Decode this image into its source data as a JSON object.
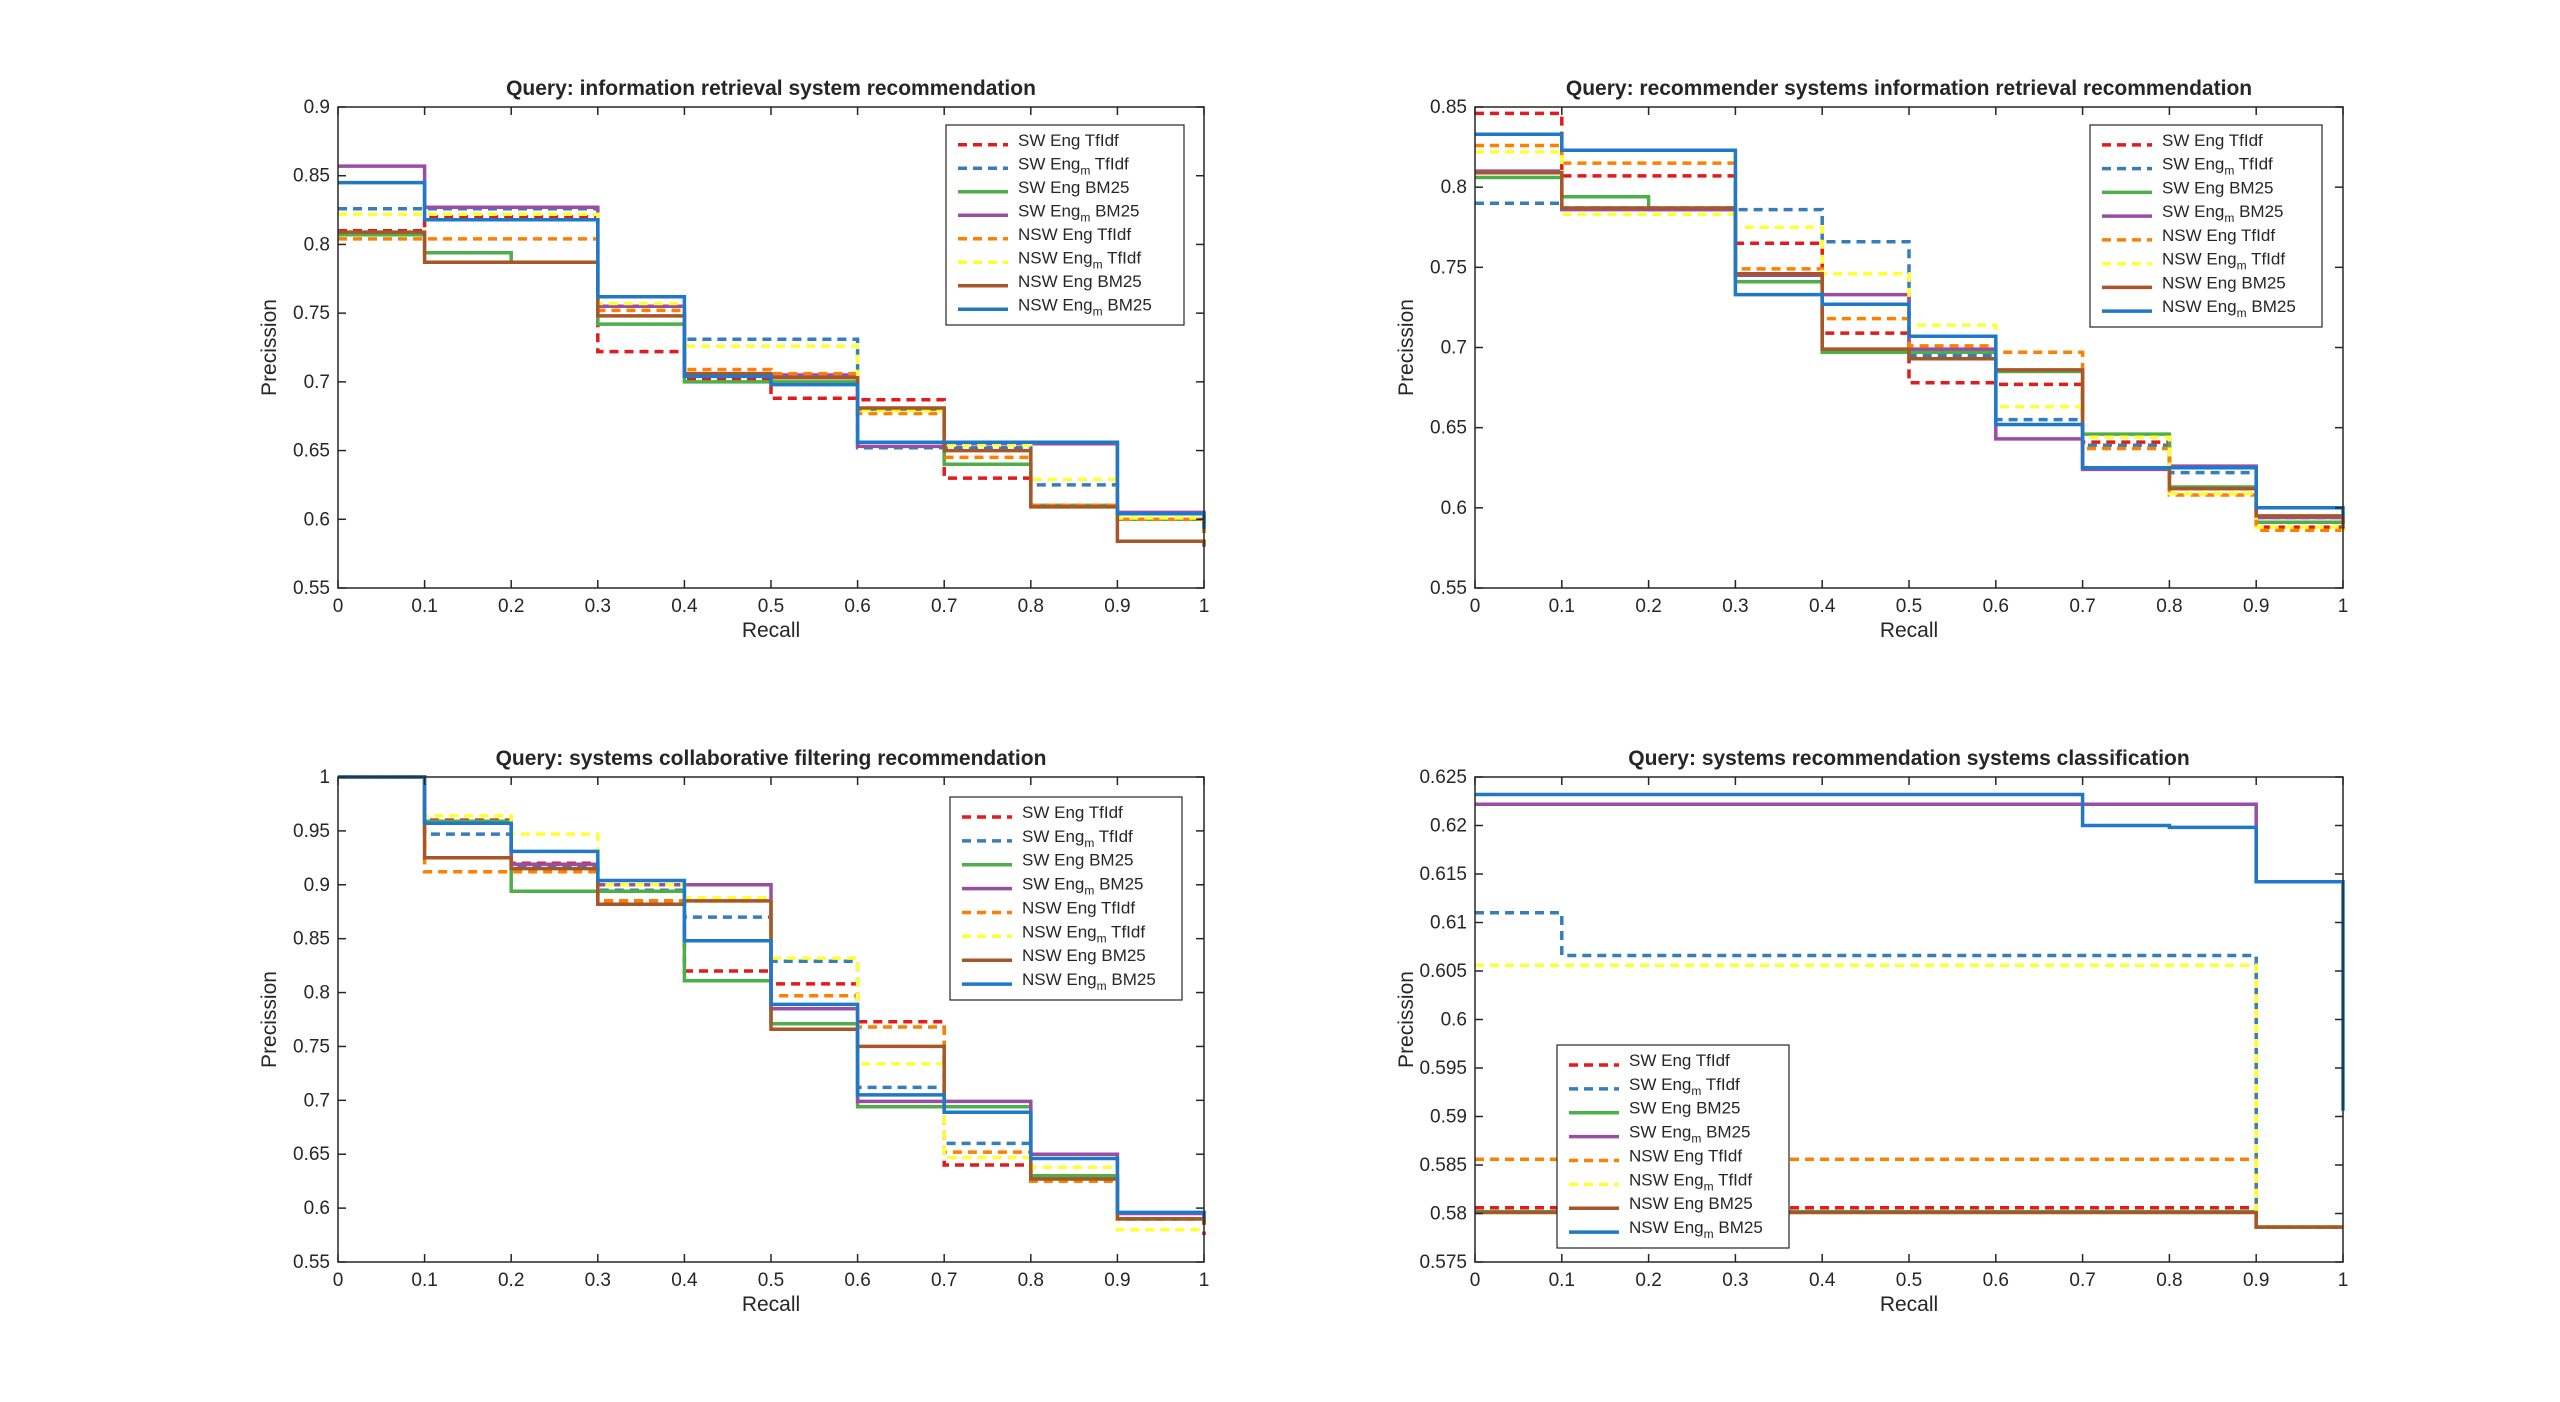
{
  "chart_data": [
    {
      "type": "line",
      "title": "Query: information retrieval system recommendation",
      "xlabel": "Recall",
      "ylabel": "Precission",
      "xlim": [
        0,
        1
      ],
      "ylim": [
        0.55,
        0.9
      ],
      "yticks": [
        "0.55",
        "0.6",
        "0.65",
        "0.7",
        "0.75",
        "0.8",
        "0.85",
        "0.9"
      ],
      "legend_position": "top-right",
      "x": [
        0,
        0.1,
        0.2,
        0.3,
        0.4,
        0.5,
        0.6,
        0.7,
        0.8,
        0.9,
        1.0
      ],
      "series": [
        {
          "name": "SW Eng TfIdf",
          "sub": "",
          "tail": "",
          "values": [
            0.81,
            0.82,
            0.82,
            0.722,
            0.702,
            0.688,
            0.687,
            0.63,
            0.61,
            0.6,
            0.595
          ]
        },
        {
          "name": "SW Eng",
          "sub": "m",
          "tail": "TfIdf",
          "values": [
            0.826,
            0.826,
            0.826,
            0.755,
            0.731,
            0.731,
            0.652,
            0.652,
            0.625,
            0.6,
            0.595
          ]
        },
        {
          "name": "SW Eng BM25",
          "sub": "",
          "tail": "",
          "values": [
            0.807,
            0.794,
            0.787,
            0.742,
            0.7,
            0.7,
            0.68,
            0.64,
            0.61,
            0.6,
            0.59
          ]
        },
        {
          "name": "SW Eng",
          "sub": "m",
          "tail": "BM25",
          "values": [
            0.857,
            0.827,
            0.827,
            0.755,
            0.705,
            0.705,
            0.653,
            0.655,
            0.655,
            0.605,
            0.595
          ]
        },
        {
          "name": "NSW Eng TfIdf",
          "sub": "",
          "tail": "",
          "values": [
            0.804,
            0.804,
            0.804,
            0.752,
            0.709,
            0.706,
            0.677,
            0.645,
            0.61,
            0.6,
            0.59
          ]
        },
        {
          "name": "NSW Eng",
          "sub": "m",
          "tail": "TfIdf",
          "values": [
            0.822,
            0.822,
            0.822,
            0.757,
            0.726,
            0.726,
            0.679,
            0.654,
            0.629,
            0.601,
            0.595
          ]
        },
        {
          "name": "NSW Eng BM25",
          "sub": "",
          "tail": "",
          "values": [
            0.809,
            0.787,
            0.787,
            0.748,
            0.706,
            0.703,
            0.681,
            0.65,
            0.609,
            0.584,
            0.58
          ]
        },
        {
          "name": "NSW Eng",
          "sub": "m",
          "tail": "BM25",
          "values": [
            0.845,
            0.818,
            0.818,
            0.762,
            0.704,
            0.698,
            0.656,
            0.656,
            0.656,
            0.604,
            0.593
          ]
        }
      ]
    },
    {
      "type": "line",
      "title": "Query: recommender systems information retrieval recommendation",
      "xlabel": "Recall",
      "ylabel": "Precission",
      "xlim": [
        0,
        1
      ],
      "ylim": [
        0.55,
        0.85
      ],
      "yticks": [
        "0.55",
        "0.6",
        "0.65",
        "0.7",
        "0.75",
        "0.8",
        "0.85"
      ],
      "legend_position": "top-right",
      "x": [
        0,
        0.1,
        0.2,
        0.3,
        0.4,
        0.5,
        0.6,
        0.7,
        0.8,
        0.9,
        1.0
      ],
      "series": [
        {
          "name": "SW Eng TfIdf",
          "sub": "",
          "tail": "",
          "values": [
            0.846,
            0.807,
            0.807,
            0.765,
            0.709,
            0.678,
            0.677,
            0.641,
            0.612,
            0.588,
            0.585
          ]
        },
        {
          "name": "SW Eng",
          "sub": "m",
          "tail": "TfIdf",
          "values": [
            0.79,
            0.787,
            0.787,
            0.786,
            0.766,
            0.695,
            0.655,
            0.639,
            0.622,
            0.594,
            0.59
          ]
        },
        {
          "name": "SW Eng BM25",
          "sub": "",
          "tail": "",
          "values": [
            0.806,
            0.794,
            0.786,
            0.741,
            0.697,
            0.697,
            0.685,
            0.646,
            0.613,
            0.591,
            0.588
          ]
        },
        {
          "name": "SW Eng",
          "sub": "m",
          "tail": "BM25",
          "values": [
            0.81,
            0.786,
            0.786,
            0.745,
            0.733,
            0.699,
            0.643,
            0.624,
            0.626,
            0.594,
            0.59
          ]
        },
        {
          "name": "NSW Eng TfIdf",
          "sub": "",
          "tail": "",
          "values": [
            0.826,
            0.815,
            0.815,
            0.749,
            0.718,
            0.701,
            0.697,
            0.637,
            0.608,
            0.586,
            0.582
          ]
        },
        {
          "name": "NSW Eng",
          "sub": "m",
          "tail": "TfIdf",
          "values": [
            0.822,
            0.783,
            0.783,
            0.775,
            0.746,
            0.714,
            0.663,
            0.644,
            0.609,
            0.588,
            0.585
          ]
        },
        {
          "name": "NSW Eng BM25",
          "sub": "",
          "tail": "",
          "values": [
            0.809,
            0.787,
            0.787,
            0.746,
            0.699,
            0.693,
            0.686,
            0.625,
            0.612,
            0.595,
            0.59
          ]
        },
        {
          "name": "NSW Eng",
          "sub": "m",
          "tail": "BM25",
          "values": [
            0.833,
            0.823,
            0.823,
            0.733,
            0.727,
            0.707,
            0.652,
            0.625,
            0.625,
            0.6,
            0.595
          ]
        }
      ]
    },
    {
      "type": "line",
      "title": "Query: systems collaborative filtering recommendation",
      "xlabel": "Recall",
      "ylabel": "Precission",
      "xlim": [
        0,
        1
      ],
      "ylim": [
        0.55,
        1
      ],
      "yticks": [
        "0.55",
        "0.6",
        "0.65",
        "0.7",
        "0.75",
        "0.8",
        "0.85",
        "0.9",
        "0.95",
        "1"
      ],
      "legend_position": "top-right",
      "x": [
        0,
        0.1,
        0.2,
        0.3,
        0.4,
        0.5,
        0.6,
        0.7,
        0.8,
        0.9,
        1.0
      ],
      "series": [
        {
          "name": "SW Eng TfIdf",
          "sub": "",
          "tail": "",
          "values": [
            1.0,
            0.96,
            0.92,
            0.885,
            0.82,
            0.808,
            0.773,
            0.64,
            0.63,
            0.59,
            0.575
          ]
        },
        {
          "name": "SW Eng",
          "sub": "m",
          "tail": "TfIdf",
          "values": [
            1.0,
            0.947,
            0.916,
            0.895,
            0.87,
            0.829,
            0.712,
            0.66,
            0.63,
            0.59,
            0.58
          ]
        },
        {
          "name": "SW Eng BM25",
          "sub": "",
          "tail": "",
          "values": [
            1.0,
            0.959,
            0.894,
            0.894,
            0.811,
            0.771,
            0.694,
            0.694,
            0.63,
            0.59,
            0.585
          ]
        },
        {
          "name": "SW Eng",
          "sub": "m",
          "tail": "BM25",
          "values": [
            1.0,
            0.957,
            0.919,
            0.9,
            0.9,
            0.785,
            0.699,
            0.699,
            0.65,
            0.595,
            0.585
          ]
        },
        {
          "name": "NSW Eng TfIdf",
          "sub": "",
          "tail": "",
          "values": [
            1.0,
            0.912,
            0.912,
            0.885,
            0.885,
            0.797,
            0.768,
            0.652,
            0.625,
            0.59,
            0.58
          ]
        },
        {
          "name": "NSW Eng",
          "sub": "m",
          "tail": "TfIdf",
          "values": [
            1.0,
            0.964,
            0.947,
            0.9,
            0.888,
            0.832,
            0.734,
            0.647,
            0.638,
            0.58,
            0.578
          ]
        },
        {
          "name": "NSW Eng BM25",
          "sub": "",
          "tail": "",
          "values": [
            1.0,
            0.925,
            0.915,
            0.882,
            0.885,
            0.766,
            0.75,
            0.689,
            0.627,
            0.59,
            0.585
          ]
        },
        {
          "name": "NSW Eng",
          "sub": "m",
          "tail": "BM25",
          "values": [
            1.0,
            0.957,
            0.931,
            0.904,
            0.848,
            0.789,
            0.705,
            0.689,
            0.646,
            0.596,
            0.59
          ]
        }
      ]
    },
    {
      "type": "line",
      "title": "Query: systems recommendation systems classification",
      "xlabel": "Recall",
      "ylabel": "Precission",
      "xlim": [
        0,
        1
      ],
      "ylim": [
        0.575,
        0.625
      ],
      "yticks": [
        "0.575",
        "0.58",
        "0.585",
        "0.59",
        "0.595",
        "0.6",
        "0.605",
        "0.61",
        "0.615",
        "0.62",
        "0.625"
      ],
      "legend_position": "bottom-left",
      "x": [
        0,
        0.1,
        0.2,
        0.3,
        0.4,
        0.5,
        0.6,
        0.7,
        0.8,
        0.9,
        1.0
      ],
      "series": [
        {
          "name": "SW Eng TfIdf",
          "sub": "",
          "tail": "",
          "values": [
            0.5806,
            0.5806,
            0.5806,
            0.5806,
            0.5806,
            0.5806,
            0.5806,
            0.5806,
            0.5806,
            0.5786,
            0.5786
          ]
        },
        {
          "name": "SW Eng",
          "sub": "m",
          "tail": "TfIdf",
          "values": [
            0.611,
            0.6066,
            0.6066,
            0.6066,
            0.6066,
            0.6066,
            0.6066,
            0.6066,
            0.6066,
            0.5786,
            0.5786
          ]
        },
        {
          "name": "SW Eng BM25",
          "sub": "",
          "tail": "",
          "values": [
            0.5802,
            0.5802,
            0.5802,
            0.5802,
            0.5802,
            0.5802,
            0.5802,
            0.5802,
            0.5802,
            0.5786,
            0.5786
          ]
        },
        {
          "name": "SW Eng",
          "sub": "m",
          "tail": "BM25",
          "values": [
            0.6222,
            0.6222,
            0.6222,
            0.6222,
            0.6222,
            0.6222,
            0.6222,
            0.6222,
            0.6222,
            0.6142,
            0.6142
          ]
        },
        {
          "name": "NSW Eng TfIdf",
          "sub": "",
          "tail": "",
          "values": [
            0.5856,
            0.5856,
            0.5856,
            0.5856,
            0.5856,
            0.5856,
            0.5856,
            0.5856,
            0.5856,
            0.5786,
            0.5786
          ]
        },
        {
          "name": "NSW Eng",
          "sub": "m",
          "tail": "TfIdf",
          "values": [
            0.6056,
            0.6056,
            0.6056,
            0.6056,
            0.6056,
            0.6056,
            0.6056,
            0.6056,
            0.6056,
            0.5786,
            0.5786
          ]
        },
        {
          "name": "NSW Eng BM25",
          "sub": "",
          "tail": "",
          "values": [
            0.5801,
            0.5801,
            0.5801,
            0.5801,
            0.5801,
            0.5801,
            0.5801,
            0.5801,
            0.5801,
            0.5786,
            0.5786
          ]
        },
        {
          "name": "NSW Eng",
          "sub": "m",
          "tail": "BM25",
          "values": [
            0.6232,
            0.6232,
            0.6232,
            0.6232,
            0.6232,
            0.6232,
            0.6232,
            0.62,
            0.6198,
            0.6142,
            0.5906
          ]
        }
      ]
    }
  ],
  "series_styles": [
    {
      "color": "#e41a1c",
      "dash": "dashed"
    },
    {
      "color": "#377eb8",
      "dash": "dashed"
    },
    {
      "color": "#4daf4a",
      "dash": "solid"
    },
    {
      "color": "#984ea3",
      "dash": "solid"
    },
    {
      "color": "#ff7f00",
      "dash": "dashed"
    },
    {
      "color": "#ffff33",
      "dash": "dashed"
    },
    {
      "color": "#a65628",
      "dash": "solid"
    },
    {
      "color": "#1f78c8",
      "dash": "solid"
    }
  ],
  "xticks": [
    "0",
    "0.1",
    "0.2",
    "0.3",
    "0.4",
    "0.5",
    "0.6",
    "0.7",
    "0.8",
    "0.9",
    "1"
  ]
}
